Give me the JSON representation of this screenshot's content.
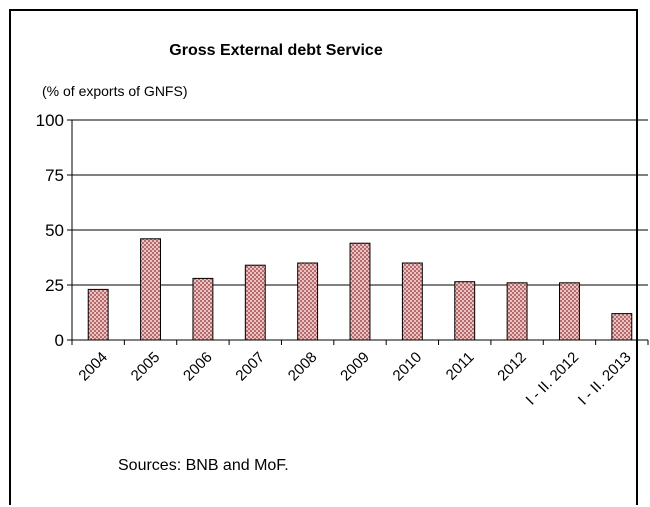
{
  "chart_data": {
    "type": "bar",
    "title": "Gross External debt Service",
    "unit_label": "(% of exports of GNFS)",
    "categories": [
      "2004",
      "2005",
      "2006",
      "2007",
      "2008",
      "2009",
      "2010",
      "2011",
      "2012",
      "I - II. 2012",
      "I - II. 2013"
    ],
    "values": [
      23,
      46,
      28,
      34,
      35,
      44,
      35,
      26.5,
      26,
      26,
      12
    ],
    "ylim": [
      0,
      100
    ],
    "yticks": [
      "0",
      "25",
      "50",
      "75",
      "100"
    ],
    "grid": true,
    "legend": "none",
    "bar_color": "#d99a9a",
    "source_note": "Sources: BNB and MoF."
  }
}
